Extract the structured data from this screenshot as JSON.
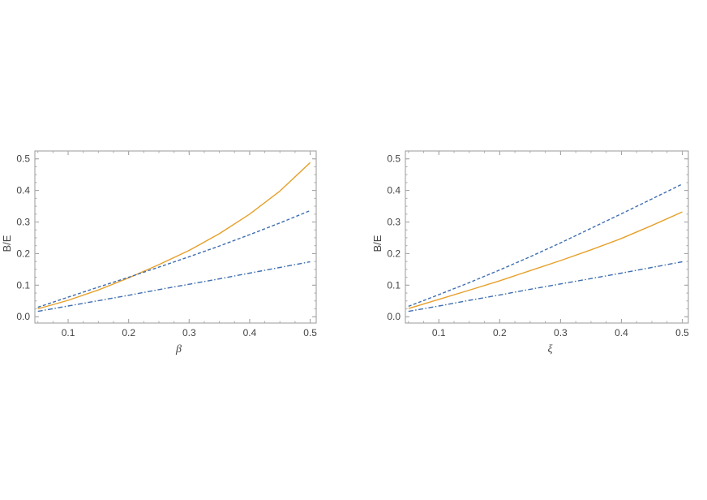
{
  "chart_data": [
    {
      "type": "line",
      "ylabel": "B/E",
      "xlabel": "β",
      "xlim": [
        0.045,
        0.51
      ],
      "ylim": [
        -0.02,
        0.525
      ],
      "xticks": [
        "0.1",
        "0.2",
        "0.3",
        "0.4",
        "0.5"
      ],
      "yticks": [
        "0.0",
        "0.1",
        "0.2",
        "0.3",
        "0.4",
        "0.5"
      ],
      "grid": false,
      "legend": "none",
      "series": [
        {
          "style": "solid",
          "color": "#e6a02a",
          "x": [
            0.05,
            0.1,
            0.15,
            0.2,
            0.25,
            0.3,
            0.35,
            0.4,
            0.45,
            0.5
          ],
          "y": [
            0.025,
            0.052,
            0.085,
            0.123,
            0.165,
            0.21,
            0.263,
            0.325,
            0.398,
            0.488
          ]
        },
        {
          "style": "dashed",
          "color": "#3f6eb0",
          "x": [
            0.05,
            0.1,
            0.15,
            0.2,
            0.25,
            0.3,
            0.35,
            0.4,
            0.45,
            0.5
          ],
          "y": [
            0.03,
            0.062,
            0.094,
            0.125,
            0.157,
            0.19,
            0.224,
            0.26,
            0.297,
            0.336
          ]
        },
        {
          "style": "dashdot",
          "color": "#3f6eb0",
          "x": [
            0.05,
            0.1,
            0.15,
            0.2,
            0.25,
            0.3,
            0.35,
            0.4,
            0.45,
            0.5
          ],
          "y": [
            0.017,
            0.034,
            0.051,
            0.068,
            0.086,
            0.103,
            0.12,
            0.138,
            0.156,
            0.174
          ]
        }
      ]
    },
    {
      "type": "line",
      "ylabel": "B/E",
      "xlabel": "ξ",
      "xlim": [
        0.045,
        0.51
      ],
      "ylim": [
        -0.02,
        0.525
      ],
      "xticks": [
        "0.1",
        "0.2",
        "0.3",
        "0.4",
        "0.5"
      ],
      "yticks": [
        "0.0",
        "0.1",
        "0.2",
        "0.3",
        "0.4",
        "0.5"
      ],
      "grid": false,
      "legend": "none",
      "series": [
        {
          "style": "dashed",
          "color": "#3f6eb0",
          "x": [
            0.05,
            0.1,
            0.15,
            0.2,
            0.25,
            0.3,
            0.35,
            0.4,
            0.45,
            0.5
          ],
          "y": [
            0.033,
            0.07,
            0.108,
            0.148,
            0.19,
            0.234,
            0.28,
            0.326,
            0.373,
            0.42
          ]
        },
        {
          "style": "solid",
          "color": "#e6a02a",
          "x": [
            0.05,
            0.1,
            0.15,
            0.2,
            0.25,
            0.3,
            0.35,
            0.4,
            0.45,
            0.5
          ],
          "y": [
            0.026,
            0.055,
            0.084,
            0.114,
            0.146,
            0.178,
            0.212,
            0.248,
            0.289,
            0.332
          ]
        },
        {
          "style": "dashdot",
          "color": "#3f6eb0",
          "x": [
            0.05,
            0.1,
            0.15,
            0.2,
            0.25,
            0.3,
            0.35,
            0.4,
            0.45,
            0.5
          ],
          "y": [
            0.017,
            0.034,
            0.052,
            0.069,
            0.087,
            0.104,
            0.121,
            0.138,
            0.156,
            0.174
          ]
        }
      ]
    }
  ]
}
